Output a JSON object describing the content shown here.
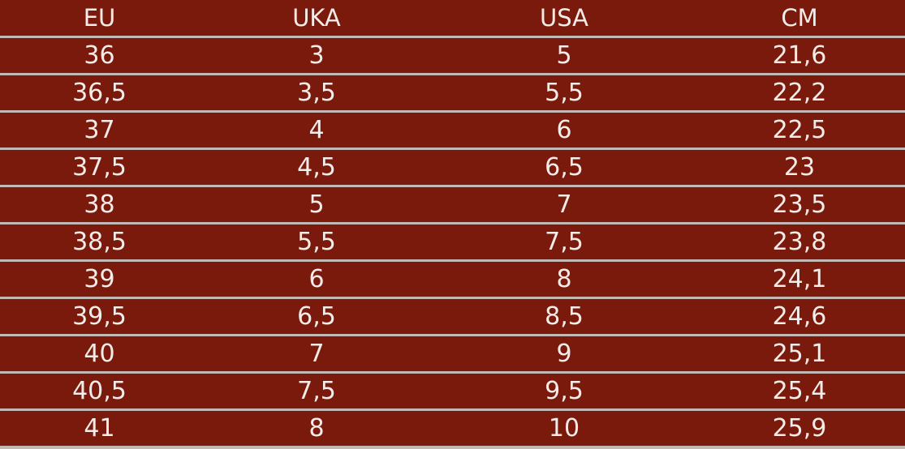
{
  "table": {
    "headers": [
      "EU",
      "UKA",
      "USA",
      "CM"
    ],
    "rows": [
      [
        "36",
        "3",
        "5",
        "21,6"
      ],
      [
        "36,5",
        "3,5",
        "5,5",
        "22,2"
      ],
      [
        "37",
        "4",
        "6",
        "22,5"
      ],
      [
        "37,5",
        "4,5",
        "6,5",
        "23"
      ],
      [
        "38",
        "5",
        "7",
        "23,5"
      ],
      [
        "38,5",
        "5,5",
        "7,5",
        "23,8"
      ],
      [
        "39",
        "6",
        "8",
        "24,1"
      ],
      [
        "39,5",
        "6,5",
        "8,5",
        "24,6"
      ],
      [
        "40",
        "7",
        "9",
        "25,1"
      ],
      [
        "40,5",
        "7,5",
        "9,5",
        "25,4"
      ],
      [
        "41",
        "8",
        "10",
        "25,9"
      ]
    ]
  },
  "colors": {
    "row_background": "#7a1a0c",
    "text": "#f4ece8",
    "divider": "#c4b8b4"
  }
}
